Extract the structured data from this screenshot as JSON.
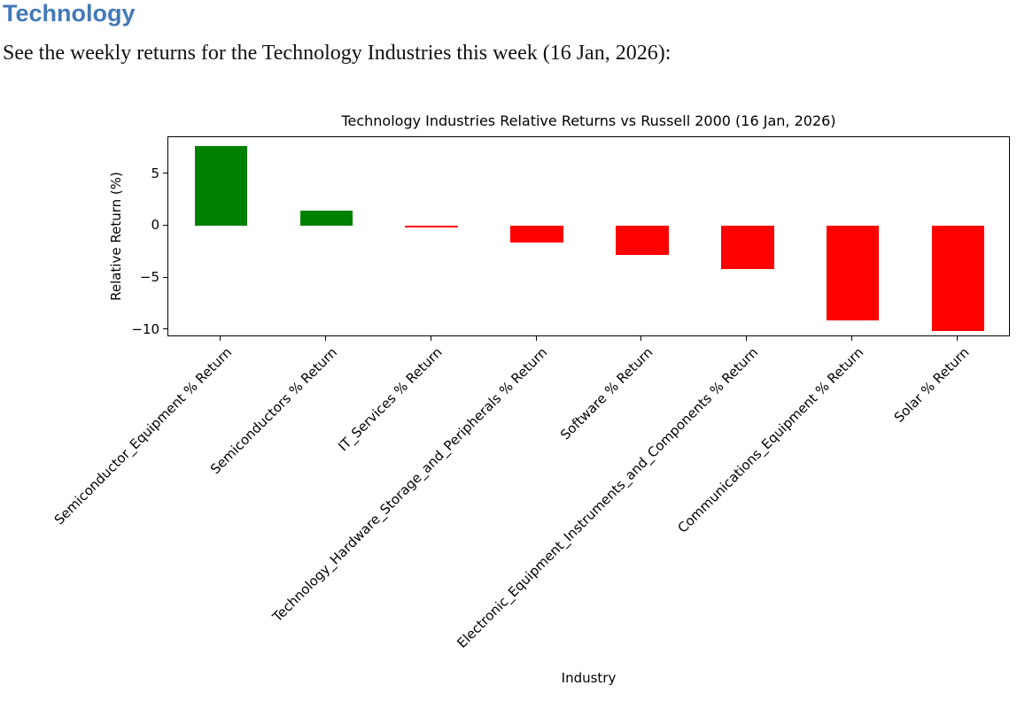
{
  "document": {
    "heading": "Technology",
    "intro": "See the weekly returns for the Technology Industries this week (16 Jan, 2026):"
  },
  "colors": {
    "heading_blue": "#4379B8",
    "positive_green": "#008000",
    "negative_red": "#ff0000",
    "axis_black": "#000000"
  },
  "chart_data": {
    "type": "bar",
    "title": "Technology Industries Relative Returns vs Russell 2000 (16 Jan, 2026)",
    "xlabel": "Industry",
    "ylabel": "Relative Return (%)",
    "categories": [
      "Semiconductor_Equipment % Return",
      "Semiconductors % Return",
      "IT_Services % Return",
      "Technology_Hardware_Storage_and_Peripherals % Return",
      "Software % Return",
      "Electronic_Equipment_Instruments_and_Components % Return",
      "Communications_Equipment % Return",
      "Solar % Return"
    ],
    "values": [
      7.7,
      1.5,
      -0.1,
      -1.6,
      -2.8,
      -4.1,
      -9.1,
      -10.1
    ],
    "bar_colors": [
      "#008000",
      "#008000",
      "#ff0000",
      "#ff0000",
      "#ff0000",
      "#ff0000",
      "#ff0000",
      "#ff0000"
    ],
    "yticks": [
      5,
      0,
      -5,
      -10
    ],
    "ytick_labels": [
      "5",
      "0",
      "−5",
      "−10"
    ],
    "ylim": [
      -10.7,
      8.55
    ],
    "bar_width_fraction": 0.5,
    "grid": false,
    "legend": "none"
  }
}
